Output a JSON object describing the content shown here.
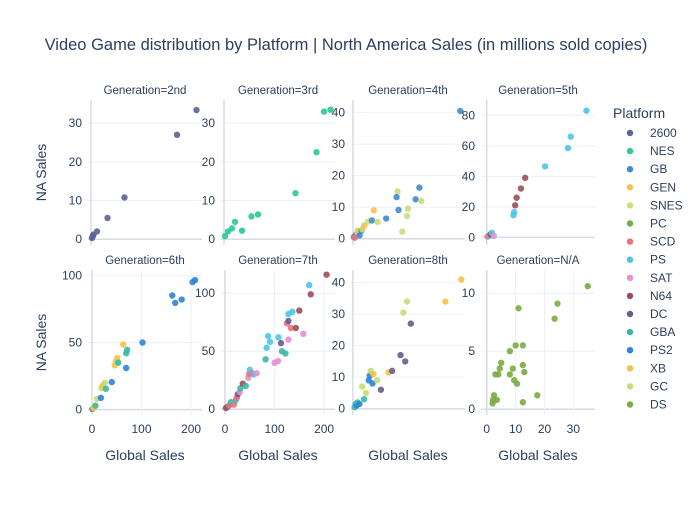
{
  "chart_data": {
    "type": "scatter",
    "title": "Video Game distribution by Platform | North America Sales (in millions sold copies)",
    "xlabel": "Global Sales",
    "ylabel": "NA Sales",
    "legend_title": "Platform",
    "legend_placement": "right",
    "grid": true,
    "platform_colors": {
      "2600": "#5c6396",
      "NES": "#2ec98f",
      "GB": "#3f8ccc",
      "GEN": "#f5c150",
      "SNES": "#c8df7a",
      "PC": "#7aac45",
      "SCD": "#ef6f7c",
      "PS": "#4ec4e9",
      "SAT": "#e58fd4",
      "N64": "#994f55",
      "DC": "#6a5b8c",
      "GBA": "#3ab8a5",
      "PS2": "#2e84d6",
      "XB": "#f6c244",
      "GC": "#c3de72",
      "DS": "#7bab42"
    },
    "legend": [
      "2600",
      "NES",
      "GB",
      "GEN",
      "SNES",
      "PC",
      "SCD",
      "PS",
      "SAT",
      "N64",
      "DC",
      "GBA",
      "PS2",
      "XB",
      "GC",
      "DS"
    ],
    "panels": [
      {
        "title": "Generation=2nd",
        "xlim": [
          -6,
          222
        ],
        "ylim": [
          -1.5,
          36
        ],
        "yticks": [
          0,
          10,
          20,
          30
        ],
        "points": [
          {
            "p": "2600",
            "x": 2,
            "y": 0.3
          },
          {
            "p": "2600",
            "x": 3,
            "y": 0.6
          },
          {
            "p": "2600",
            "x": 4,
            "y": 0.9
          },
          {
            "p": "2600",
            "x": 5,
            "y": 1.2
          },
          {
            "p": "2600",
            "x": 12,
            "y": 2.0
          },
          {
            "p": "2600",
            "x": 33,
            "y": 5.5
          },
          {
            "p": "2600",
            "x": 67,
            "y": 10.8
          },
          {
            "p": "2600",
            "x": 172,
            "y": 27
          },
          {
            "p": "2600",
            "x": 211,
            "y": 33.4
          }
        ]
      },
      {
        "title": "Generation=3rd",
        "xlim": [
          -6,
          222
        ],
        "ylim": [
          -1.5,
          36
        ],
        "yticks": [
          0,
          10,
          20,
          30
        ],
        "points": [
          {
            "p": "NES",
            "x": 2,
            "y": 0.8
          },
          {
            "p": "NES",
            "x": 8,
            "y": 2.0
          },
          {
            "p": "NES",
            "x": 16,
            "y": 2.8
          },
          {
            "p": "NES",
            "x": 22,
            "y": 4.5
          },
          {
            "p": "NES",
            "x": 36,
            "y": 2.2
          },
          {
            "p": "NES",
            "x": 55,
            "y": 5.9
          },
          {
            "p": "NES",
            "x": 68,
            "y": 6.4
          },
          {
            "p": "NES",
            "x": 143,
            "y": 11.9
          },
          {
            "p": "NES",
            "x": 185,
            "y": 22.5
          },
          {
            "p": "NES",
            "x": 200,
            "y": 33
          },
          {
            "p": "NES",
            "x": 213,
            "y": 33.5
          }
        ]
      },
      {
        "title": "Generation=4th",
        "xlim": [
          -2,
          118
        ],
        "ylim": [
          -2,
          44
        ],
        "yticks": [
          0,
          10,
          20,
          30,
          40
        ],
        "points": [
          {
            "p": "GB",
            "x": 1,
            "y": 0.5
          },
          {
            "p": "GB",
            "x": 3,
            "y": 1.2
          },
          {
            "p": "SNES",
            "x": 5,
            "y": 1.8
          },
          {
            "p": "GEN",
            "x": 5,
            "y": 2.5
          },
          {
            "p": "GB",
            "x": 7,
            "y": 1.0
          },
          {
            "p": "SCD",
            "x": 2,
            "y": 0.3
          },
          {
            "p": "GB",
            "x": 9,
            "y": 2.5
          },
          {
            "p": "SNES",
            "x": 10,
            "y": 3.0
          },
          {
            "p": "GEN",
            "x": 12,
            "y": 4.2
          },
          {
            "p": "SNES",
            "x": 16,
            "y": 5.4
          },
          {
            "p": "GB",
            "x": 20,
            "y": 5.8
          },
          {
            "p": "GEN",
            "x": 22,
            "y": 9.0
          },
          {
            "p": "SNES",
            "x": 26,
            "y": 5.3
          },
          {
            "p": "GB",
            "x": 35,
            "y": 6.4
          },
          {
            "p": "SNES",
            "x": 47,
            "y": 15.0
          },
          {
            "p": "GB",
            "x": 46,
            "y": 13.2
          },
          {
            "p": "GB",
            "x": 48,
            "y": 9.1
          },
          {
            "p": "SNES",
            "x": 52,
            "y": 2.2
          },
          {
            "p": "SNES",
            "x": 57,
            "y": 7.2
          },
          {
            "p": "SNES",
            "x": 58,
            "y": 9.5
          },
          {
            "p": "GB",
            "x": 66,
            "y": 12.5
          },
          {
            "p": "GB",
            "x": 70,
            "y": 16.2
          },
          {
            "p": "SNES",
            "x": 72,
            "y": 12.0
          },
          {
            "p": "GB",
            "x": 113,
            "y": 40.5
          }
        ]
      },
      {
        "title": "Generation=5th",
        "xlim": [
          -2,
          38
        ],
        "ylim": [
          -5,
          90
        ],
        "yticks": [
          0,
          20,
          40,
          60,
          80
        ],
        "points": [
          {
            "p": "SCD",
            "x": 0.3,
            "y": 0.5
          },
          {
            "p": "PS",
            "x": 1,
            "y": 1.0
          },
          {
            "p": "N64",
            "x": 1.3,
            "y": 2.0
          },
          {
            "p": "PS",
            "x": 1.8,
            "y": 3.0
          },
          {
            "p": "SAT",
            "x": 2.5,
            "y": 1.0
          },
          {
            "p": "PS",
            "x": 9.4,
            "y": 14.5
          },
          {
            "p": "PS",
            "x": 9.6,
            "y": 16.5
          },
          {
            "p": "N64",
            "x": 10,
            "y": 21.0
          },
          {
            "p": "N64",
            "x": 10.5,
            "y": 26.0
          },
          {
            "p": "N64",
            "x": 12,
            "y": 32.0
          },
          {
            "p": "N64",
            "x": 13.5,
            "y": 39.0
          },
          {
            "p": "PS",
            "x": 20.5,
            "y": 46.5
          },
          {
            "p": "PS",
            "x": 28.5,
            "y": 58.5
          },
          {
            "p": "PS",
            "x": 29.5,
            "y": 66.0
          },
          {
            "p": "PS",
            "x": 35,
            "y": 83.0
          }
        ]
      },
      {
        "title": "Generation=6th",
        "xlim": [
          -8,
          222
        ],
        "ylim": [
          -4,
          104
        ],
        "yticks": [
          0,
          50,
          100
        ],
        "xticks": [
          0,
          100,
          200
        ],
        "points": [
          {
            "p": "DC",
            "x": 1,
            "y": 0.5
          },
          {
            "p": "GC",
            "x": 3,
            "y": 1.0
          },
          {
            "p": "XB",
            "x": 5,
            "y": 2.0
          },
          {
            "p": "GBA",
            "x": 7,
            "y": 3.0
          },
          {
            "p": "GC",
            "x": 10,
            "y": 8.0
          },
          {
            "p": "PS2",
            "x": 18,
            "y": 8.8
          },
          {
            "p": "GC",
            "x": 19,
            "y": 16.0
          },
          {
            "p": "XB",
            "x": 22,
            "y": 18.0
          },
          {
            "p": "GC",
            "x": 26,
            "y": 20.0
          },
          {
            "p": "GBA",
            "x": 28,
            "y": 15.5
          },
          {
            "p": "PS2",
            "x": 40,
            "y": 20.5
          },
          {
            "p": "XB",
            "x": 46,
            "y": 33.0
          },
          {
            "p": "GC",
            "x": 48,
            "y": 36.0
          },
          {
            "p": "XB",
            "x": 51,
            "y": 38.5
          },
          {
            "p": "GBA",
            "x": 53,
            "y": 35.0
          },
          {
            "p": "XB",
            "x": 63,
            "y": 48.5
          },
          {
            "p": "GBA",
            "x": 69,
            "y": 42.0
          },
          {
            "p": "PS2",
            "x": 69,
            "y": 31.0
          },
          {
            "p": "GBA",
            "x": 71,
            "y": 44.5
          },
          {
            "p": "PS2",
            "x": 102,
            "y": 50.0
          },
          {
            "p": "PS2",
            "x": 162,
            "y": 85.0
          },
          {
            "p": "PS2",
            "x": 168,
            "y": 79.5
          },
          {
            "p": "PS2",
            "x": 181,
            "y": 82.0
          },
          {
            "p": "PS2",
            "x": 203,
            "y": 95.0
          },
          {
            "p": "PS2",
            "x": 208,
            "y": 96.5
          }
        ]
      },
      {
        "title": "Generation=7th",
        "xlim": [
          -8,
          222
        ],
        "ylim": [
          -5,
          120
        ],
        "yticks": [
          0,
          50,
          100
        ],
        "xticks": [
          0,
          100,
          200
        ],
        "points": [
          {
            "p": "N64",
            "x": 2,
            "y": 1.0
          },
          {
            "p": "DC",
            "x": 5,
            "y": 2.0
          },
          {
            "p": "SCD",
            "x": 8,
            "y": 3.0
          },
          {
            "p": "GBA",
            "x": 12,
            "y": 6.0
          },
          {
            "p": "SCD",
            "x": 18,
            "y": 4.0
          },
          {
            "p": "GBA",
            "x": 22,
            "y": 8.0
          },
          {
            "p": "SCD",
            "x": 24,
            "y": 10.0
          },
          {
            "p": "DC",
            "x": 26,
            "y": 13.0
          },
          {
            "p": "SAT",
            "x": 30,
            "y": 15.0
          },
          {
            "p": "GBA",
            "x": 31,
            "y": 18.0
          },
          {
            "p": "N64",
            "x": 36,
            "y": 22.0
          },
          {
            "p": "GBA",
            "x": 42,
            "y": 20.0
          },
          {
            "p": "SAT",
            "x": 47,
            "y": 27.0
          },
          {
            "p": "SCD",
            "x": 49,
            "y": 30.5
          },
          {
            "p": "PS",
            "x": 50,
            "y": 34.0
          },
          {
            "p": "SCD",
            "x": 55,
            "y": 31.0
          },
          {
            "p": "PS",
            "x": 58,
            "y": 30.0
          },
          {
            "p": "SAT",
            "x": 64,
            "y": 31.0
          },
          {
            "p": "GBA",
            "x": 82,
            "y": 43.0
          },
          {
            "p": "PS",
            "x": 84,
            "y": 53.0
          },
          {
            "p": "PS",
            "x": 87,
            "y": 63.0
          },
          {
            "p": "PS",
            "x": 91,
            "y": 58.0
          },
          {
            "p": "SAT",
            "x": 100,
            "y": 40.0
          },
          {
            "p": "SAT",
            "x": 107,
            "y": 41.5
          },
          {
            "p": "PS",
            "x": 108,
            "y": 62.0
          },
          {
            "p": "DC",
            "x": 113,
            "y": 57.0
          },
          {
            "p": "GBA",
            "x": 115,
            "y": 50.0
          },
          {
            "p": "GBA",
            "x": 122,
            "y": 48.0
          },
          {
            "p": "SCD",
            "x": 125,
            "y": 74.0
          },
          {
            "p": "DC",
            "x": 128,
            "y": 76.0
          },
          {
            "p": "PS",
            "x": 128,
            "y": 82.0
          },
          {
            "p": "SAT",
            "x": 128,
            "y": 60.0
          },
          {
            "p": "SCD",
            "x": 133,
            "y": 70.0
          },
          {
            "p": "PS",
            "x": 136,
            "y": 84.0
          },
          {
            "p": "N64",
            "x": 143,
            "y": 70.0
          },
          {
            "p": "N64",
            "x": 150,
            "y": 85.0
          },
          {
            "p": "SAT",
            "x": 158,
            "y": 65.0
          },
          {
            "p": "PS",
            "x": 170,
            "y": 107.0
          },
          {
            "p": "N64",
            "x": 173,
            "y": 99.0
          },
          {
            "p": "N64",
            "x": 205,
            "y": 116.0
          }
        ]
      },
      {
        "title": "Generation=8th",
        "xlim": [
          -2,
          120
        ],
        "ylim": [
          -2,
          44
        ],
        "yticks": [
          0,
          10,
          20,
          30,
          40
        ],
        "points": [
          {
            "p": "GBA",
            "x": 2,
            "y": 0.5
          },
          {
            "p": "GBA",
            "x": 3,
            "y": 1.5
          },
          {
            "p": "PS2",
            "x": 4,
            "y": 1.0
          },
          {
            "p": "GBA",
            "x": 5,
            "y": 2.0
          },
          {
            "p": "PS2",
            "x": 7,
            "y": 1.5
          },
          {
            "p": "GC",
            "x": 10,
            "y": 7.0
          },
          {
            "p": "GBA",
            "x": 12,
            "y": 3.0
          },
          {
            "p": "GC",
            "x": 14,
            "y": 5.0
          },
          {
            "p": "PS2",
            "x": 17,
            "y": 9.0
          },
          {
            "p": "PS2",
            "x": 18,
            "y": 10.5
          },
          {
            "p": "GC",
            "x": 19,
            "y": 12.0
          },
          {
            "p": "PS2",
            "x": 21,
            "y": 8.0
          },
          {
            "p": "XB",
            "x": 22,
            "y": 11.0
          },
          {
            "p": "GC",
            "x": 26,
            "y": 9.0
          },
          {
            "p": "DC",
            "x": 30,
            "y": 6.0
          },
          {
            "p": "XB",
            "x": 38,
            "y": 11.5
          },
          {
            "p": "DC",
            "x": 42,
            "y": 12.0
          },
          {
            "p": "DC",
            "x": 51,
            "y": 17.0
          },
          {
            "p": "DC",
            "x": 56,
            "y": 15.0
          },
          {
            "p": "GC",
            "x": 54,
            "y": 30.5
          },
          {
            "p": "GC",
            "x": 58,
            "y": 34.0
          },
          {
            "p": "DC",
            "x": 62,
            "y": 27.0
          },
          {
            "p": "XB",
            "x": 99,
            "y": 34.0
          },
          {
            "p": "XB",
            "x": 116,
            "y": 41.0
          }
        ]
      },
      {
        "title": "Generation=N/A",
        "xlim": [
          -2,
          37.5
        ],
        "ylim": [
          -0.5,
          12
        ],
        "yticks": [
          0,
          5,
          10
        ],
        "xticks": [
          0,
          10,
          20,
          30
        ],
        "points": [
          {
            "p": "DS",
            "x": 2,
            "y": 0.5
          },
          {
            "p": "DS",
            "x": 2.2,
            "y": 0.8
          },
          {
            "p": "DS",
            "x": 2.5,
            "y": 1.2
          },
          {
            "p": "DS",
            "x": 3.5,
            "y": 0.8
          },
          {
            "p": "DS",
            "x": 3,
            "y": 3.0
          },
          {
            "p": "DS",
            "x": 4,
            "y": 3.0
          },
          {
            "p": "DS",
            "x": 4.5,
            "y": 3.5
          },
          {
            "p": "DS",
            "x": 5,
            "y": 4.0
          },
          {
            "p": "DS",
            "x": 8,
            "y": 3.0
          },
          {
            "p": "DS",
            "x": 8,
            "y": 5.0
          },
          {
            "p": "DS",
            "x": 9,
            "y": 3.5
          },
          {
            "p": "DS",
            "x": 9.5,
            "y": 2.5
          },
          {
            "p": "DS",
            "x": 10,
            "y": 5.5
          },
          {
            "p": "DS",
            "x": 10.5,
            "y": 2.2
          },
          {
            "p": "DS",
            "x": 11,
            "y": 8.7
          },
          {
            "p": "DS",
            "x": 12.5,
            "y": 5.5
          },
          {
            "p": "DS",
            "x": 12.5,
            "y": 3.8
          },
          {
            "p": "DS",
            "x": 13,
            "y": 3.2
          },
          {
            "p": "DS",
            "x": 12.5,
            "y": 0.6
          },
          {
            "p": "DS",
            "x": 17.5,
            "y": 1.2
          },
          {
            "p": "DS",
            "x": 23.5,
            "y": 7.8
          },
          {
            "p": "DS",
            "x": 24.5,
            "y": 9.1
          },
          {
            "p": "DS",
            "x": 35,
            "y": 10.6
          }
        ]
      }
    ]
  }
}
